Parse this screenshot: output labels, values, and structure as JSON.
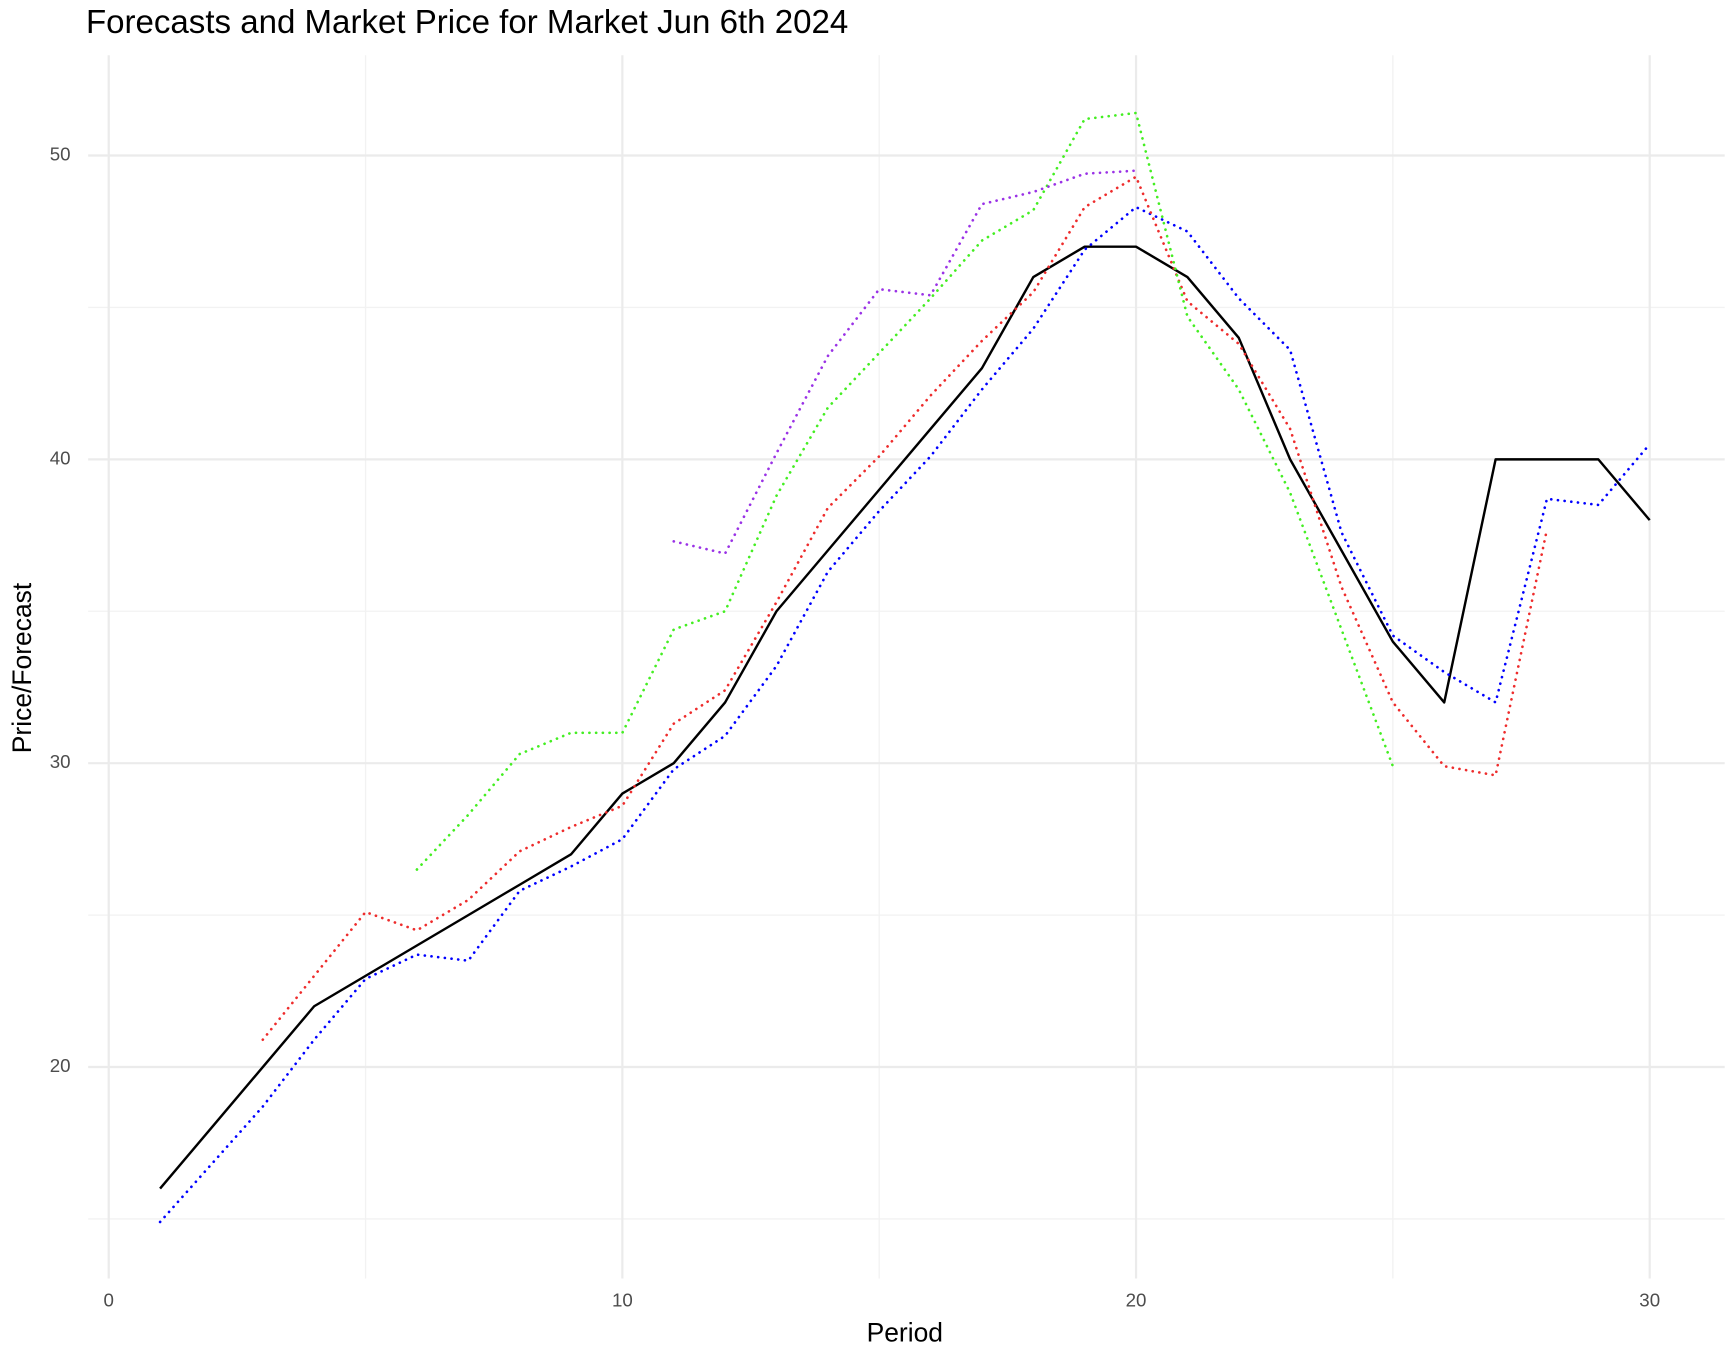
{
  "chart_data": {
    "type": "line",
    "title": "Forecasts and Market Price for Market Jun 6th 2024",
    "x_label": "Period",
    "y_label": "Price/Forecast",
    "x": [
      1,
      2,
      3,
      4,
      5,
      6,
      7,
      8,
      9,
      10,
      11,
      12,
      13,
      14,
      15,
      16,
      17,
      18,
      19,
      20,
      21,
      22,
      23,
      24,
      25,
      26,
      27,
      28,
      29,
      30
    ],
    "series": [
      {
        "color": "#000000",
        "dashed": false,
        "values": [
          16,
          18,
          20,
          22,
          23,
          24,
          25,
          26,
          27,
          29,
          30,
          32,
          35,
          37,
          39,
          41,
          43,
          46,
          47,
          47,
          46,
          44,
          40,
          37,
          34,
          32,
          40,
          40,
          40,
          38
        ]
      },
      {
        "color": "#0000ff",
        "dashed": true,
        "values": [
          14.9,
          16.8,
          18.7,
          20.9,
          22.9,
          23.7,
          23.5,
          25.8,
          26.6,
          27.5,
          29.8,
          30.9,
          33.2,
          36.3,
          38.3,
          40.1,
          42.3,
          44.3,
          46.9,
          48.3,
          47.5,
          45.3,
          43.6,
          37.6,
          34.2,
          33.0,
          32.0,
          38.7,
          38.5,
          40.5
        ]
      },
      {
        "color": "#ee2c2c",
        "dashed": true,
        "values": [
          null,
          null,
          20.9,
          23,
          25.1,
          24.5,
          25.5,
          27.1,
          27.9,
          28.6,
          31.3,
          32.4,
          35.3,
          38.4,
          40.1,
          42.1,
          43.9,
          45.5,
          48.3,
          49.3,
          45.2,
          43.8,
          41.0,
          35.8,
          32.0,
          29.9,
          29.6,
          37.7,
          null,
          null
        ]
      },
      {
        "color": "#44ee22",
        "dashed": true,
        "values": [
          null,
          null,
          null,
          null,
          null,
          26.5,
          28.3,
          30.3,
          31,
          31,
          34.4,
          35.0,
          38.8,
          41.7,
          43.5,
          45.3,
          47.2,
          48.2,
          51.2,
          51.4,
          44.7,
          42.3,
          38.9,
          34.4,
          29.9,
          null,
          null,
          null,
          null,
          null
        ]
      },
      {
        "color": "#9a32e6",
        "dashed": true,
        "values": [
          null,
          null,
          null,
          null,
          null,
          null,
          null,
          null,
          null,
          null,
          37.3,
          36.9,
          40.2,
          43.4,
          45.6,
          45.4,
          48.4,
          48.8,
          49.4,
          49.5,
          null,
          null,
          null,
          null,
          null,
          null,
          null,
          null,
          null,
          null
        ]
      }
    ],
    "xlim": [
      -0.4,
      31.46
    ],
    "ylim": [
      13.04,
      53.3
    ],
    "xticks": [
      0,
      10,
      20,
      30
    ],
    "yticks": [
      20,
      30,
      40,
      50
    ],
    "xminor": [
      5,
      15,
      25
    ],
    "yminor": [
      15,
      25,
      35,
      45
    ],
    "grid": true
  }
}
